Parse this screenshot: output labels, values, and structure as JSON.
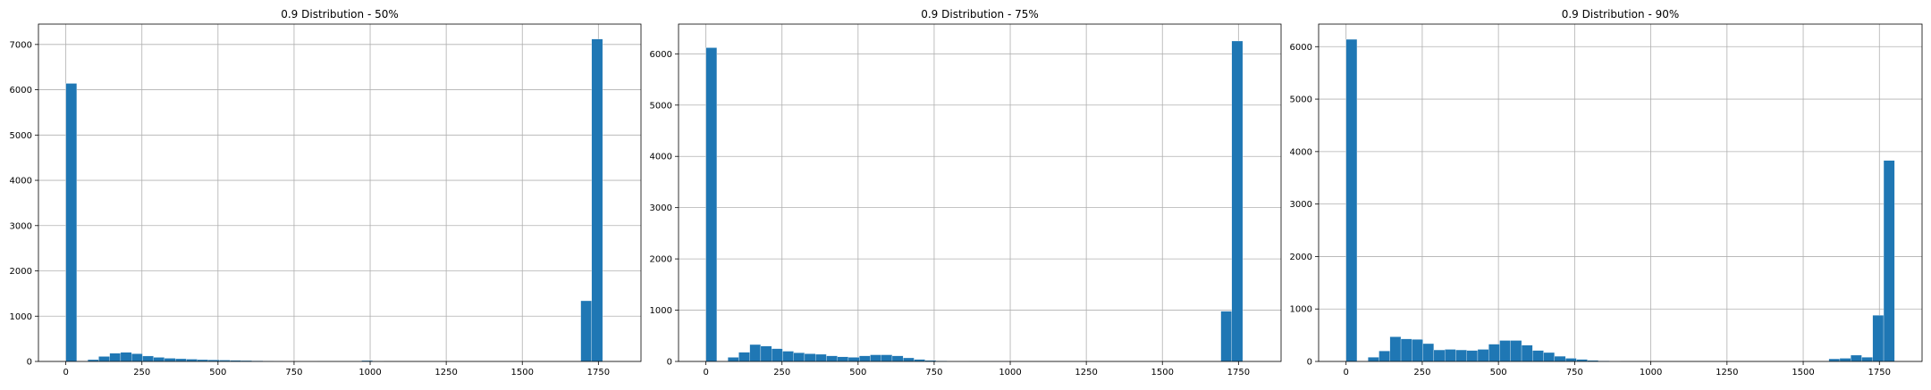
{
  "colors": {
    "bar": "#1f77b4",
    "grid": "#b0b0b0",
    "axis": "#000000",
    "background": "#ffffff"
  },
  "chart_data": [
    {
      "type": "bar",
      "title": "0.9 Distribution - 50%",
      "xlabel": "",
      "ylabel": "",
      "xlim": [
        -90,
        1890
      ],
      "ylim": [
        0,
        7450
      ],
      "xticks": [
        0,
        250,
        500,
        750,
        1000,
        1250,
        1500,
        1750
      ],
      "yticks": [
        0,
        1000,
        2000,
        3000,
        4000,
        5000,
        6000,
        7000
      ],
      "grid": true,
      "bin_start": 0,
      "bin_width": 36,
      "values": [
        6140,
        0,
        40,
        110,
        180,
        200,
        170,
        120,
        90,
        70,
        60,
        50,
        40,
        35,
        30,
        25,
        20,
        15,
        10,
        8,
        5,
        4,
        3,
        2,
        2,
        2,
        2,
        20,
        2,
        0,
        0,
        0,
        0,
        0,
        0,
        0,
        0,
        0,
        0,
        0,
        0,
        0,
        0,
        0,
        0,
        0,
        0,
        1340,
        7120
      ]
    },
    {
      "type": "bar",
      "title": "0.9 Distribution - 75%",
      "xlabel": "",
      "ylabel": "",
      "xlim": [
        -90,
        1890
      ],
      "ylim": [
        0,
        6580
      ],
      "xticks": [
        0,
        250,
        500,
        750,
        1000,
        1250,
        1500,
        1750
      ],
      "yticks": [
        0,
        1000,
        2000,
        3000,
        4000,
        5000,
        6000
      ],
      "grid": true,
      "bin_start": 0,
      "bin_width": 36,
      "values": [
        6120,
        0,
        80,
        180,
        330,
        300,
        250,
        200,
        170,
        150,
        140,
        110,
        90,
        80,
        110,
        130,
        130,
        110,
        70,
        40,
        20,
        10,
        5,
        3,
        2,
        1,
        1,
        1,
        0,
        0,
        0,
        0,
        0,
        0,
        0,
        0,
        0,
        0,
        0,
        0,
        0,
        0,
        0,
        0,
        0,
        0,
        0,
        980,
        6250
      ]
    },
    {
      "type": "bar",
      "title": "0.9 Distribution - 90%",
      "xlabel": "",
      "ylabel": "",
      "xlim": [
        -90,
        1890
      ],
      "ylim": [
        0,
        6430
      ],
      "xticks": [
        0,
        250,
        500,
        750,
        1000,
        1250,
        1500,
        1750
      ],
      "yticks": [
        0,
        1000,
        2000,
        3000,
        4000,
        5000,
        6000
      ],
      "grid": true,
      "bin_start": 0,
      "bin_width": 36,
      "values": [
        6140,
        0,
        80,
        200,
        470,
        430,
        420,
        340,
        220,
        230,
        220,
        210,
        230,
        330,
        400,
        400,
        310,
        210,
        170,
        100,
        60,
        40,
        20,
        10,
        5,
        0,
        0,
        0,
        0,
        0,
        0,
        0,
        0,
        0,
        0,
        0,
        0,
        0,
        0,
        0,
        0,
        0,
        0,
        0,
        50,
        60,
        120,
        80,
        880,
        3830
      ]
    }
  ]
}
